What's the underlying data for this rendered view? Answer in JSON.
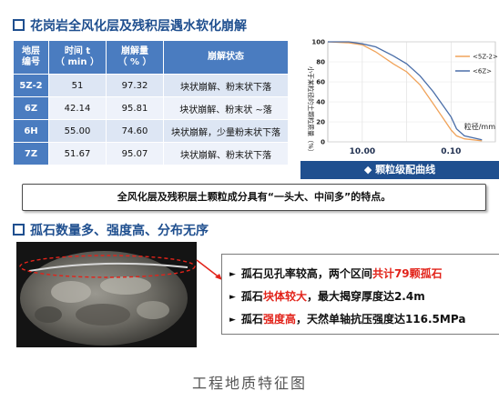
{
  "section1": {
    "title": "花岗岩全风化层及残积层遇水软化崩解"
  },
  "table": {
    "headers": [
      "地层\n编号",
      "时间 t\n（ min ）",
      "崩解量\n（ % ）",
      "崩解状态"
    ],
    "rows": [
      {
        "code": "5Z-2",
        "time": "51",
        "amount": "97.32",
        "state": "块状崩解、粉末状下落"
      },
      {
        "code": "6Z",
        "time": "42.14",
        "amount": "95.81",
        "state": "块状崩解、粉末状 ~落"
      },
      {
        "code": "6H",
        "time": "55.00",
        "amount": "74.60",
        "state": "块状崩解，少量粉末状下落"
      },
      {
        "code": "7Z",
        "time": "51.67",
        "amount": "95.07",
        "state": "块状崩解、粉末状下落"
      }
    ]
  },
  "chart_data": {
    "type": "line",
    "caption": "◆ 颗粒级配曲线",
    "ylabel": "小于某粒径的土颗粒质量（%）",
    "xlabel": "粒径/mm",
    "x_scale": "log",
    "x_reversed": true,
    "xlim": [
      60,
      0.01
    ],
    "ylim": [
      0,
      100
    ],
    "yticks": [
      0,
      20,
      40,
      60,
      80,
      100
    ],
    "xtick_labels": [
      {
        "x": 10,
        "label": "10.00"
      },
      {
        "x": 0.1,
        "label": "0.10"
      }
    ],
    "series": [
      {
        "name": "<5Z-2>",
        "color": "#f0a35a",
        "x": [
          60,
          20,
          10,
          5,
          2,
          1,
          0.5,
          0.25,
          0.1,
          0.075,
          0.05,
          0.02
        ],
        "y": [
          100,
          99,
          97,
          90,
          78,
          70,
          57,
          38,
          12,
          6,
          3,
          1
        ]
      },
      {
        "name": "<6Z>",
        "color": "#4a6ea8",
        "x": [
          60,
          20,
          10,
          5,
          2,
          1,
          0.5,
          0.25,
          0.1,
          0.075,
          0.05,
          0.02
        ],
        "y": [
          100,
          100,
          98,
          95,
          86,
          78,
          66,
          50,
          25,
          13,
          6,
          2
        ]
      }
    ]
  },
  "conclusion": {
    "text": "全风化层及残积层土颗粒成分具有“一头大、中间多”的特点。"
  },
  "section2": {
    "title": "孤石数量多、强度高、分布无序"
  },
  "bullets": [
    {
      "parts": [
        {
          "text": "孤石见孔率较高，两个区间",
          "red": false
        },
        {
          "text": "共计79颗孤石",
          "red": true
        }
      ]
    },
    {
      "parts": [
        {
          "text": "孤石",
          "red": false
        },
        {
          "text": "块体较大",
          "red": true
        },
        {
          "text": "，最大揭穿厚度达2.4m",
          "red": false
        }
      ]
    },
    {
      "parts": [
        {
          "text": "孤石",
          "red": false
        },
        {
          "text": "强度高",
          "red": true
        },
        {
          "text": "，天然单轴抗压强度达116.5MPa",
          "red": false
        }
      ]
    }
  ],
  "footer": {
    "caption": "工程地质特征图"
  },
  "colors": {
    "accent": "#1f4f8f",
    "table_header": "#4a7cc0",
    "highlight": "#e2231a"
  }
}
